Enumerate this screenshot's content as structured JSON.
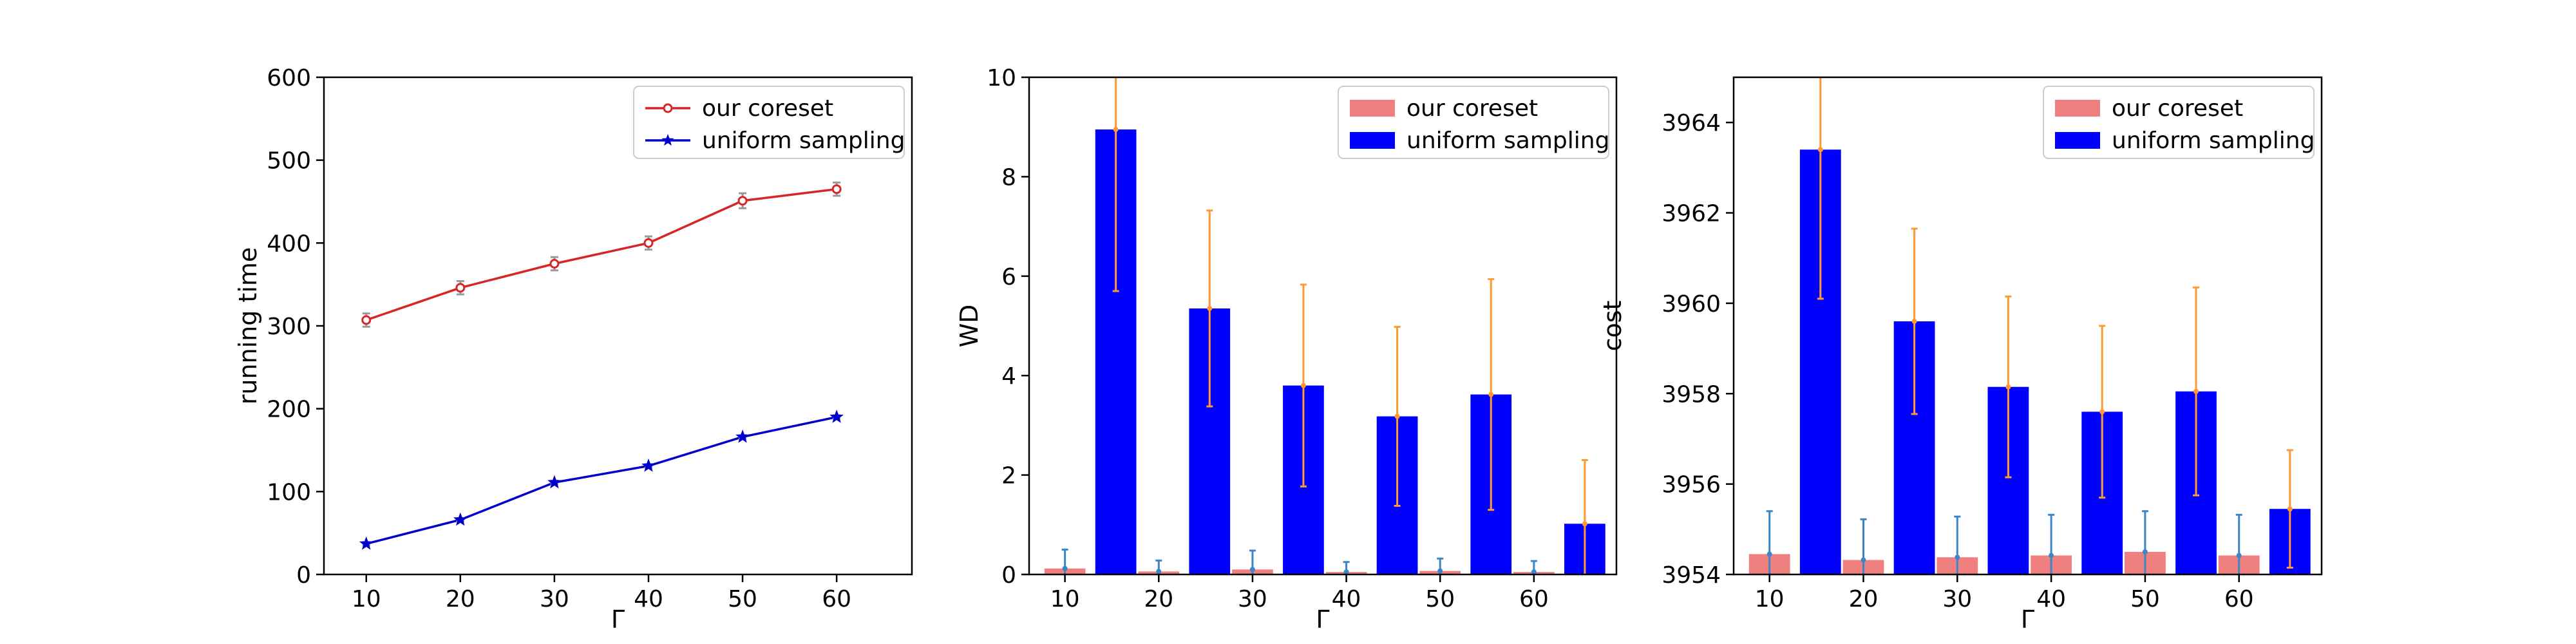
{
  "chart_data": [
    {
      "type": "line",
      "xlabel": "Γ",
      "ylabel": "running time",
      "x": [
        10,
        20,
        30,
        40,
        50,
        60
      ],
      "xticks": [
        10,
        20,
        30,
        40,
        50,
        60
      ],
      "xlim": [
        5.5,
        68
      ],
      "ylim": [
        0,
        600
      ],
      "yticks": [
        0,
        100,
        200,
        300,
        400,
        500,
        600
      ],
      "legend_position": "top-right",
      "series": [
        {
          "name": "our coreset",
          "values": [
            307,
            346,
            375,
            400,
            451,
            465
          ],
          "err": [
            8,
            8,
            8,
            8,
            9,
            8
          ],
          "color": "#d62728",
          "marker": "circle"
        },
        {
          "name": "uniform sampling",
          "values": [
            37,
            66,
            111,
            131,
            166,
            190
          ],
          "err": [
            2,
            2,
            2,
            2,
            2,
            2
          ],
          "color": "#0000cc",
          "marker": "star"
        }
      ]
    },
    {
      "type": "bar",
      "xlabel": "Γ",
      "ylabel": "WD",
      "categories": [
        "10",
        "20",
        "30",
        "40",
        "50",
        "60"
      ],
      "ylim": [
        0,
        10
      ],
      "yticks": [
        0,
        2,
        4,
        6,
        8,
        10
      ],
      "legend_position": "top-right",
      "series": [
        {
          "name": "our coreset",
          "values": [
            0.12,
            0.06,
            0.1,
            0.05,
            0.07,
            0.05
          ],
          "err": [
            0.38,
            0.22,
            0.38,
            0.2,
            0.25,
            0.22
          ],
          "color": "#f08080",
          "err_color": "#3a86c8"
        },
        {
          "name": "uniform sampling",
          "values": [
            8.95,
            5.35,
            3.8,
            3.18,
            3.62,
            1.02
          ],
          "err": [
            3.25,
            1.97,
            2.03,
            1.8,
            2.32,
            1.28
          ],
          "color": "#0000ff",
          "err_color": "#ff9933"
        }
      ]
    },
    {
      "type": "bar",
      "xlabel": "Γ",
      "ylabel": "cost",
      "categories": [
        "10",
        "20",
        "30",
        "40",
        "50",
        "60"
      ],
      "ylim": [
        3954,
        3965
      ],
      "yticks": [
        3954,
        3956,
        3958,
        3960,
        3962,
        3964
      ],
      "legend_position": "top-right",
      "series": [
        {
          "name": "our coreset",
          "values": [
            3954.45,
            3954.32,
            3954.38,
            3954.42,
            3954.5,
            3954.42
          ],
          "err": [
            0.95,
            0.9,
            0.9,
            0.9,
            0.9,
            0.9
          ],
          "color": "#f08080",
          "err_color": "#3a86c8"
        },
        {
          "name": "uniform sampling",
          "values": [
            3963.4,
            3959.6,
            3958.15,
            3957.6,
            3958.05,
            3955.45
          ],
          "err": [
            3.3,
            2.05,
            2.0,
            1.9,
            2.3,
            1.3
          ],
          "color": "#0000ff",
          "err_color": "#ff9933"
        }
      ]
    }
  ]
}
